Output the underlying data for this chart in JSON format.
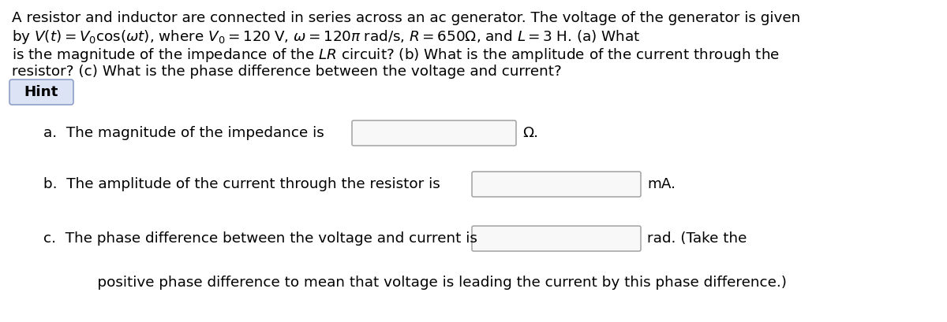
{
  "bg_color": "#ffffff",
  "text_color": "#000000",
  "hint_text": "Hint",
  "hint_box_color": "#dce3f5",
  "hint_border_color": "#8fa0c8",
  "input_box_color": "#f8f8f8",
  "input_border_color": "#999999",
  "para_line1": "A resistor and inductor are connected in series across an ac generator. The voltage of the generator is given",
  "para_line2": "by $V(t) = V_0\\cos(\\omega t)$, where $V_0 = 120\\;$V, $\\omega = 120\\pi\\;$rad/s, $R = 650\\Omega$, and $L = 3\\;$H. (a) What",
  "para_line3": "is the magnitude of the impedance of the $LR$ circuit? (b) What is the amplitude of the current through the",
  "para_line4": "resistor? (c) What is the phase difference between the voltage and current?",
  "line_a_prefix": "a.  The magnitude of the impedance is",
  "line_a_suffix": "Ω.",
  "line_b_prefix": "b.  The amplitude of the current through the resistor is",
  "line_b_suffix": "mA.",
  "line_c_prefix": "c.  The phase difference between the voltage and current is",
  "line_c_suffix": "rad. (Take the",
  "line_d": "    positive phase difference to mean that voltage is leading the current by this phase difference.)",
  "main_fontsize": 13.2,
  "label_fontsize": 13.2,
  "hint_fontsize": 13.2,
  "fig_width": 12.0,
  "fig_height": 4.09,
  "dpi": 100
}
